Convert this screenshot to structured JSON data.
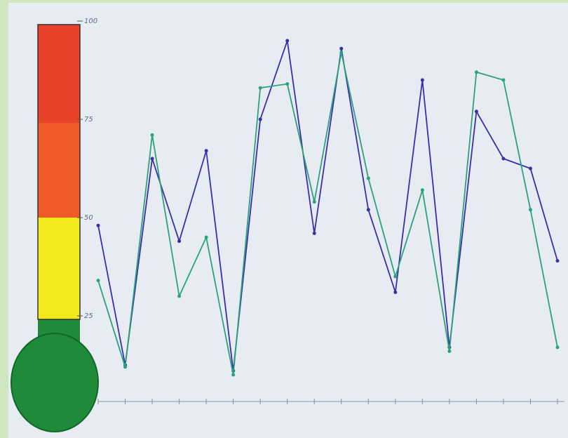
{
  "chart_data": {
    "type": "line",
    "categories": [
      null,
      null,
      null,
      null,
      null,
      null,
      null,
      null,
      null,
      null,
      null,
      null,
      null,
      null,
      null,
      null,
      null,
      null
    ],
    "series": [
      {
        "color": "#3a2fa8",
        "values": [
          48,
          12.5,
          65,
          44,
          67,
          11,
          75,
          95,
          46,
          93,
          52,
          31,
          85,
          17,
          77,
          65,
          62.5,
          39
        ]
      },
      {
        "color": "#2aa37a",
        "values": [
          34,
          12,
          71,
          30,
          45,
          10,
          83,
          84,
          54,
          92,
          60,
          35,
          57,
          16,
          87,
          85,
          52,
          17
        ]
      }
    ],
    "ylim": [
      0,
      100
    ],
    "yticks": [
      25,
      50,
      75,
      100
    ]
  }
}
